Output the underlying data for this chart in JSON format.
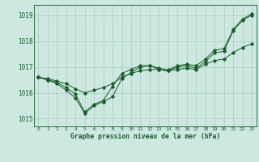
{
  "background_color": "#cce8e0",
  "grid_color": "#aaccC4",
  "line_color": "#1a5c2a",
  "xlabel": "Graphe pression niveau de la mer (hPa)",
  "xlim": [
    -0.5,
    23.5
  ],
  "ylim": [
    1014.7,
    1019.4
  ],
  "yticks": [
    1015,
    1016,
    1017,
    1018,
    1019
  ],
  "xticks": [
    0,
    1,
    2,
    3,
    4,
    5,
    6,
    7,
    8,
    9,
    10,
    11,
    12,
    13,
    14,
    15,
    16,
    17,
    18,
    19,
    20,
    21,
    22,
    23
  ],
  "line1_x": [
    0,
    1,
    2,
    3,
    4,
    5,
    6,
    7,
    8,
    9,
    10,
    11,
    12,
    13,
    14,
    15,
    16,
    17,
    18,
    19,
    20,
    21,
    22,
    23
  ],
  "line1_y": [
    1016.6,
    1016.55,
    1016.45,
    1016.35,
    1016.15,
    1016.0,
    1016.1,
    1016.2,
    1016.35,
    1016.6,
    1016.75,
    1016.85,
    1016.9,
    1016.9,
    1016.85,
    1016.9,
    1016.95,
    1016.9,
    1017.1,
    1017.25,
    1017.3,
    1017.55,
    1017.75,
    1017.9
  ],
  "line2_x": [
    0,
    1,
    2,
    3,
    4,
    5,
    6,
    7,
    8,
    9,
    10,
    11,
    12,
    13,
    14,
    15,
    16,
    17,
    18,
    19,
    20,
    21,
    22,
    23
  ],
  "line2_y": [
    1016.6,
    1016.5,
    1016.35,
    1016.1,
    1015.8,
    1015.2,
    1015.5,
    1015.65,
    1015.85,
    1016.55,
    1016.78,
    1017.0,
    1017.05,
    1016.9,
    1016.85,
    1017.0,
    1017.05,
    1016.95,
    1017.2,
    1017.55,
    1017.6,
    1018.4,
    1018.8,
    1019.0
  ],
  "line3_x": [
    0,
    1,
    2,
    3,
    4,
    5,
    6,
    7,
    8,
    9,
    10,
    11,
    12,
    13,
    14,
    15,
    16,
    17,
    18,
    19,
    20,
    21,
    22,
    23
  ],
  "line3_y": [
    1016.6,
    1016.5,
    1016.4,
    1016.2,
    1015.95,
    1015.25,
    1015.55,
    1015.7,
    1016.25,
    1016.75,
    1016.9,
    1017.05,
    1017.05,
    1016.95,
    1016.88,
    1017.05,
    1017.1,
    1017.05,
    1017.3,
    1017.65,
    1017.7,
    1018.45,
    1018.85,
    1019.05
  ],
  "figsize": [
    3.2,
    2.0
  ],
  "dpi": 100
}
